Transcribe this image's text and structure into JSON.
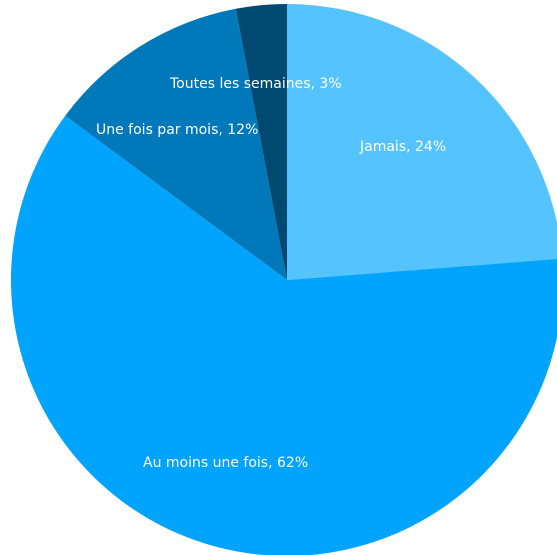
{
  "chart_data": {
    "type": "pie",
    "start_angle_deg": 0,
    "direction": "clockwise",
    "slices": [
      {
        "label": "Jamais",
        "value": 24,
        "display": "Jamais, 24%",
        "color": "#55c3fd"
      },
      {
        "label": "Au moins une fois",
        "value": 62,
        "display": "Au moins une fois, 62%",
        "color": "#00a4fd"
      },
      {
        "label": "Une fois par mois",
        "value": 12,
        "display": "Une fois par mois, 12%",
        "color": "#0078ba"
      },
      {
        "label": "Toutes les semaines",
        "value": 3,
        "display": "Toutes les semaines, 3%",
        "color": "#004a72"
      }
    ]
  }
}
